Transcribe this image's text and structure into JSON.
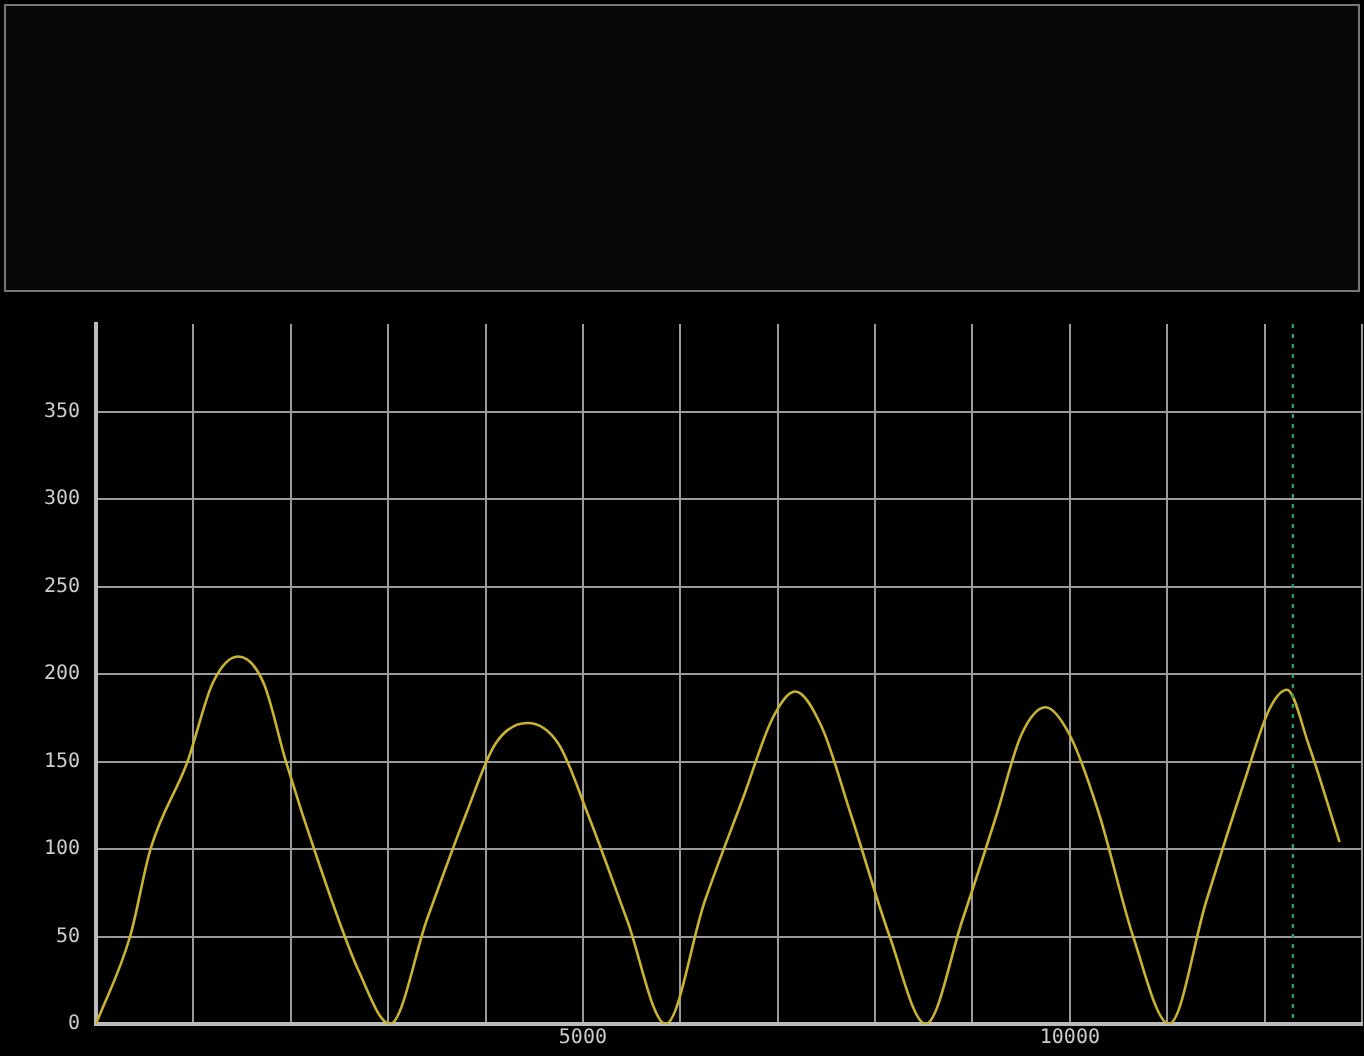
{
  "chart_data": {
    "type": "line",
    "x": [
      0,
      350,
      560,
      940,
      1200,
      1460,
      1720,
      1950,
      2300,
      2700,
      3020,
      3400,
      3800,
      4100,
      4430,
      4750,
      5050,
      5450,
      5850,
      6250,
      6650,
      6950,
      7180,
      7450,
      7750,
      8150,
      8520,
      8900,
      9250,
      9500,
      9750,
      10000,
      10300,
      10650,
      11020,
      11400,
      11800,
      12050,
      12230,
      12450,
      12770
    ],
    "series": [
      {
        "color": "#c8b432",
        "values": [
          0,
          50,
          100,
          150,
          195,
          210,
          195,
          150,
          90,
          30,
          0,
          60,
          120,
          160,
          172,
          160,
          120,
          60,
          0,
          70,
          130,
          175,
          190,
          170,
          120,
          50,
          0,
          60,
          120,
          165,
          181,
          165,
          120,
          50,
          0,
          70,
          140,
          180,
          191,
          160,
          104
        ]
      }
    ],
    "xlim": [
      0,
      13000
    ],
    "xticks": [
      {
        "value": 0,
        "label": null
      },
      {
        "value": 1000,
        "label": null
      },
      {
        "value": 2000,
        "label": null
      },
      {
        "value": 3000,
        "label": null
      },
      {
        "value": 4000,
        "label": null
      },
      {
        "value": 5000,
        "label": "5000"
      },
      {
        "value": 6000,
        "label": null
      },
      {
        "value": 7000,
        "label": null
      },
      {
        "value": 8000,
        "label": null
      },
      {
        "value": 9000,
        "label": null
      },
      {
        "value": 10000,
        "label": "10000"
      },
      {
        "value": 11000,
        "label": null
      },
      {
        "value": 12000,
        "label": null
      },
      {
        "value": 13000,
        "label": null
      }
    ],
    "ylim": [
      0,
      400
    ],
    "yticks": [
      0,
      50,
      100,
      150,
      200,
      250,
      300,
      350
    ],
    "ref_lines": [
      {
        "axis": "x",
        "value": 12290,
        "color": "#2e9a5a",
        "line_style": "dotted"
      }
    ],
    "grid": true,
    "marker": "none",
    "line_style": "solid"
  }
}
